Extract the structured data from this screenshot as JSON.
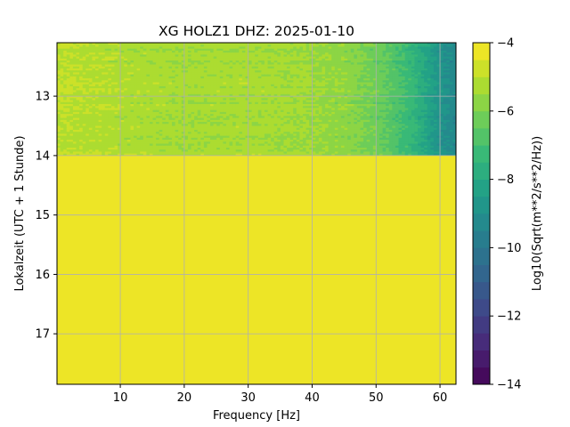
{
  "chart_data": {
    "type": "heatmap",
    "title": "XG HOLZ1  DHZ: 2025-01-10",
    "xlabel": "Frequency [Hz]",
    "ylabel": "Lokalzeit (UTC + 1 Stunde)",
    "colorbar_label": "Log10(Sqrt(m**2/s**2/Hz))",
    "x_ticks": [
      "10",
      "20",
      "30",
      "40",
      "50",
      "60"
    ],
    "y_ticks": [
      "13",
      "14",
      "15",
      "16",
      "17"
    ],
    "colorbar_ticks": [
      "−4",
      "−6",
      "−8",
      "−10",
      "−12",
      "−14"
    ],
    "xlim": [
      0.1,
      62.5
    ],
    "ylim": [
      17.85,
      12.1
    ],
    "colorbar_range": [
      -14,
      -4
    ],
    "colormap": "viridis",
    "grid": true,
    "data_time_range": [
      12.1,
      14.0
    ],
    "fill_after_data": -4,
    "psd_profile": [
      {
        "frequency": 1,
        "value": -5.0
      },
      {
        "frequency": 10,
        "value": -5.2
      },
      {
        "frequency": 20,
        "value": -5.4
      },
      {
        "frequency": 30,
        "value": -5.3
      },
      {
        "frequency": 40,
        "value": -5.5
      },
      {
        "frequency": 45,
        "value": -5.7
      },
      {
        "frequency": 50,
        "value": -6.2
      },
      {
        "frequency": 55,
        "value": -7.2
      },
      {
        "frequency": 60,
        "value": -8.8
      },
      {
        "frequency": 62.5,
        "value": -9.3
      }
    ]
  }
}
